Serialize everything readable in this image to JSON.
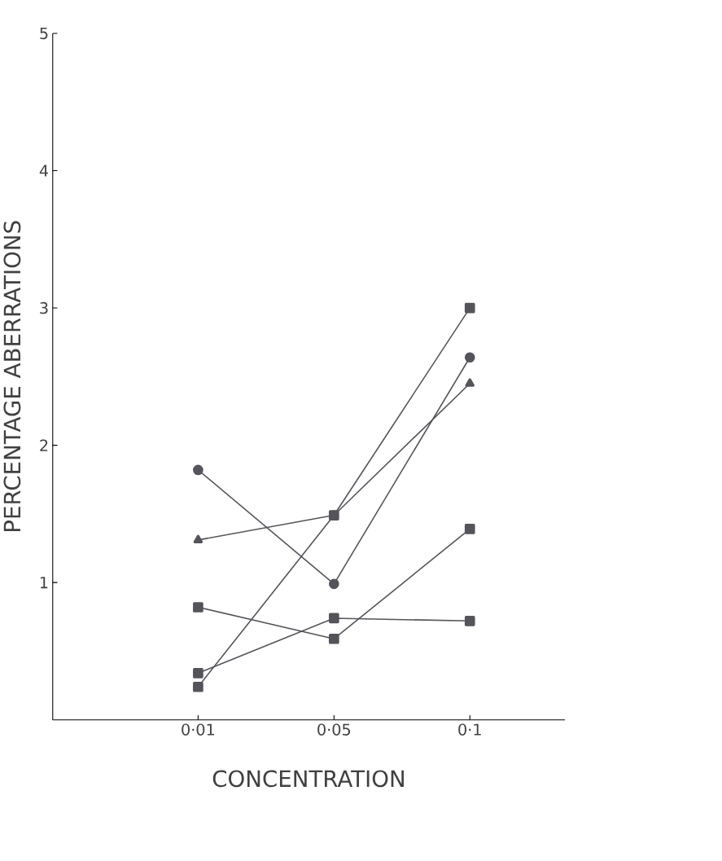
{
  "chart_data": {
    "type": "line",
    "xlabel": "CONCENTRATION",
    "ylabel": "PERCENTAGE   ABERRATIONS",
    "categories": [
      "0·01",
      "0·05",
      "0·1"
    ],
    "series": [
      {
        "color": "#55545a",
        "marker": "circle",
        "values": [
          1.82,
          0.99,
          2.64
        ]
      },
      {
        "color": "#55545a",
        "marker": "triangle",
        "values": [
          1.31,
          1.49,
          2.45
        ]
      },
      {
        "color": "#55545a",
        "marker": "square",
        "values": [
          0.24,
          1.49,
          3.0
        ]
      },
      {
        "color": "#55545a",
        "marker": "square",
        "values": [
          0.34,
          0.74,
          0.72
        ]
      },
      {
        "color": "#55545a",
        "marker": "square",
        "values": [
          0.82,
          0.59,
          1.39
        ]
      }
    ],
    "ylim": [
      0,
      5
    ],
    "yticks": [
      1,
      2,
      3,
      4,
      5
    ],
    "grid": false,
    "line_style": "solid"
  }
}
